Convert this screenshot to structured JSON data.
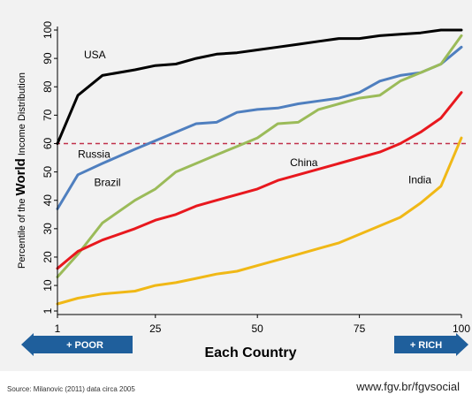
{
  "chart_data": {
    "type": "line",
    "ylabel_prefix": "Percentile of the",
    "ylabel_bold": "World",
    "ylabel_suffix": "Income Distribution",
    "xlabel": "Each Country",
    "x_ticks": [
      1,
      25,
      50,
      75,
      100
    ],
    "y_ticks": [
      1,
      10,
      20,
      30,
      40,
      50,
      60,
      70,
      80,
      90,
      100
    ],
    "xlim": [
      1,
      100
    ],
    "ylim": [
      1,
      100
    ],
    "grid": false,
    "reference_line": {
      "y": 60,
      "color": "#c0304a",
      "style": "dashed"
    },
    "series": [
      {
        "name": "USA",
        "color": "#000000",
        "x": [
          1,
          6,
          12,
          20,
          25,
          30,
          35,
          40,
          45,
          50,
          55,
          60,
          65,
          70,
          75,
          80,
          85,
          90,
          95,
          100
        ],
        "y": [
          60,
          77,
          84,
          86,
          87.5,
          88,
          90,
          91.5,
          92,
          93,
          94,
          95,
          96,
          97,
          97,
          98,
          98.5,
          99,
          100,
          100
        ]
      },
      {
        "name": "Russia",
        "color": "#4f7fbf",
        "x": [
          1,
          6,
          12,
          20,
          25,
          30,
          35,
          40,
          45,
          50,
          55,
          60,
          65,
          70,
          75,
          80,
          85,
          90,
          95,
          100
        ],
        "y": [
          37,
          49,
          53,
          58,
          61,
          64,
          67,
          67.5,
          71,
          72,
          72.5,
          74,
          75,
          76,
          78,
          82,
          84,
          85,
          88,
          94
        ]
      },
      {
        "name": "Brazil",
        "color": "#9bbb59",
        "x": [
          1,
          6,
          12,
          20,
          25,
          30,
          35,
          40,
          45,
          50,
          55,
          60,
          65,
          70,
          75,
          80,
          85,
          90,
          95,
          100
        ],
        "y": [
          13,
          21,
          32,
          40,
          44,
          50,
          53,
          56,
          59,
          62,
          67,
          67.5,
          72,
          74,
          76,
          77,
          82,
          85,
          88,
          98
        ]
      },
      {
        "name": "China",
        "color": "#e8181e",
        "x": [
          1,
          6,
          12,
          20,
          25,
          30,
          35,
          40,
          45,
          50,
          55,
          60,
          65,
          70,
          75,
          80,
          85,
          90,
          95,
          100
        ],
        "y": [
          16,
          22,
          26,
          30,
          33,
          35,
          38,
          40,
          42,
          44,
          47,
          49,
          51,
          53,
          55,
          57,
          60,
          64,
          69,
          78
        ]
      },
      {
        "name": "India",
        "color": "#f0b816",
        "x": [
          1,
          6,
          12,
          20,
          25,
          30,
          35,
          40,
          45,
          50,
          55,
          60,
          65,
          70,
          75,
          80,
          85,
          90,
          95,
          100
        ],
        "y": [
          3.5,
          5.5,
          7,
          8,
          10,
          11,
          12.5,
          14,
          15,
          17,
          19,
          21,
          23,
          25,
          28,
          31,
          34,
          39,
          45,
          62
        ]
      }
    ],
    "series_labels": [
      {
        "text": "USA",
        "x": 7.5,
        "y": 90
      },
      {
        "text": "Russia",
        "x": 6,
        "y": 55
      },
      {
        "text": "Brazil",
        "x": 10,
        "y": 45
      },
      {
        "text": "China",
        "x": 58,
        "y": 52
      },
      {
        "text": "India",
        "x": 87,
        "y": 46
      }
    ],
    "arrows": {
      "poor": {
        "text": "+ POOR",
        "color": "#1f5f9c"
      },
      "rich": {
        "text": "+ RICH",
        "color": "#1f5f9c"
      }
    }
  },
  "footer": {
    "source": "Source: Milanovic (2011) data circa 2005",
    "url": "www.fgv.br/fgvsocial"
  }
}
